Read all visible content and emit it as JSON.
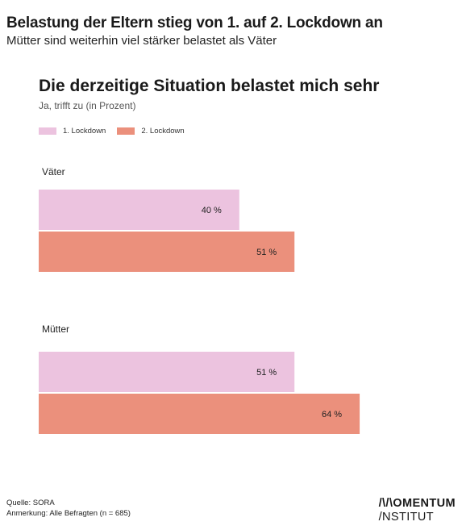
{
  "header": {
    "title": "Belastung der Eltern stieg von 1. auf 2. Lockdown an",
    "subtitle": "Mütter sind weiterhin viel stärker belastet als Väter"
  },
  "chart_data": {
    "type": "bar",
    "orientation": "horizontal",
    "title": "Die derzeitige Situation belastet mich sehr",
    "subtitle": "Ja, trifft zu (in Prozent)",
    "categories": [
      "Väter",
      "Mütter"
    ],
    "series": [
      {
        "name": "1. Lockdown",
        "values": [
          40,
          51
        ],
        "labels": [
          "40 %",
          "51 %"
        ],
        "color": "#ecc3df"
      },
      {
        "name": "2. Lockdown",
        "values": [
          51,
          64
        ],
        "labels": [
          "51 %",
          "64 %"
        ],
        "color": "#eb907c"
      }
    ],
    "xlim": [
      0,
      100
    ],
    "grid": false,
    "legend": "top-left"
  },
  "footer": {
    "source": "Quelle: SORA",
    "note": "Anmerkung: Alle Befragten (n = 685)"
  },
  "logo": {
    "line1": "/\\/\\OMENTUM",
    "line2": "/NSTITUT"
  }
}
